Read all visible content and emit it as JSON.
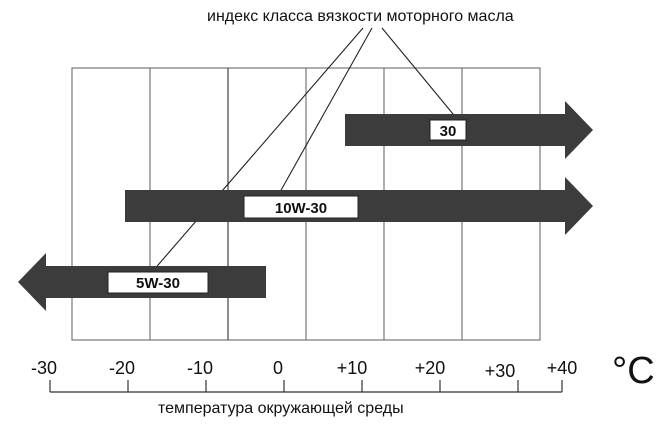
{
  "diagram": {
    "title": "индекс класса вязкости моторного масла",
    "axis_title": "температура окружающей среды",
    "unit": "°C",
    "ticks": [
      "-30",
      "-20",
      "-10",
      "0",
      "+10",
      "+20",
      "+30",
      "+40"
    ],
    "bands": [
      {
        "label": "30",
        "from": 10,
        "to": 40,
        "open_end": "right"
      },
      {
        "label": "10W-30",
        "from": -20,
        "to": 40,
        "open_end": "right"
      },
      {
        "label": "5W-30",
        "from": -30,
        "to": 0,
        "open_end": "left"
      }
    ],
    "colors": {
      "bar": "#3c3c3c",
      "grid": "#777777",
      "text": "#111111",
      "label_bg": "#ffffff"
    }
  }
}
